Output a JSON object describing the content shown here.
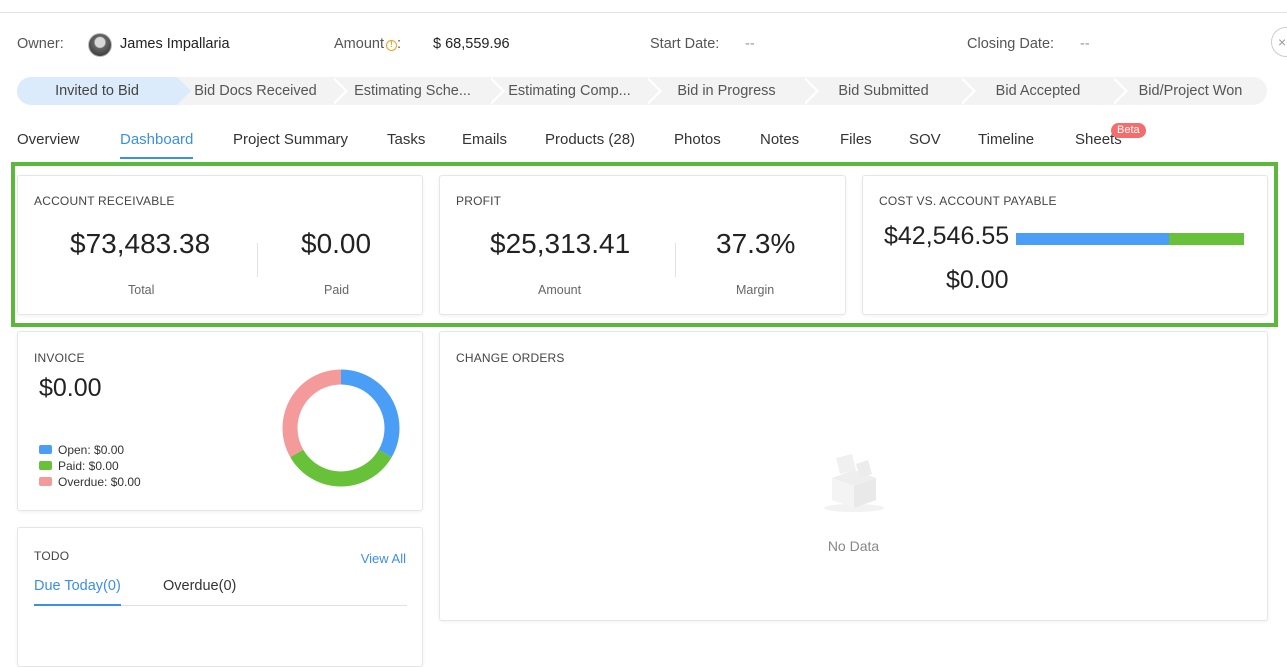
{
  "header": {
    "owner_label": "Owner:",
    "owner_name": "James Impallaria",
    "amount_label": "Amount",
    "amount_colon": ":",
    "amount_value": "$ 68,559.96",
    "start_label": "Start Date:",
    "start_value": "--",
    "closing_label": "Closing Date:",
    "closing_value": "--"
  },
  "stages": [
    {
      "label": "Invited to Bid",
      "active": true
    },
    {
      "label": "Bid Docs Received"
    },
    {
      "label": "Estimating Sche..."
    },
    {
      "label": "Estimating Comp..."
    },
    {
      "label": "Bid in Progress"
    },
    {
      "label": "Bid Submitted"
    },
    {
      "label": "Bid Accepted"
    },
    {
      "label": "Bid/Project Won"
    }
  ],
  "tabs": [
    {
      "label": "Overview"
    },
    {
      "label": "Dashboard",
      "active": true
    },
    {
      "label": "Project Summary"
    },
    {
      "label": "Tasks"
    },
    {
      "label": "Emails"
    },
    {
      "label": "Products (28)"
    },
    {
      "label": "Photos"
    },
    {
      "label": "Notes"
    },
    {
      "label": "Files"
    },
    {
      "label": "SOV"
    },
    {
      "label": "Timeline"
    },
    {
      "label": "Sheets",
      "badge": "Beta"
    }
  ],
  "account_receivable": {
    "title": "ACCOUNT RECEIVABLE",
    "total_value": "$73,483.38",
    "total_label": "Total",
    "paid_value": "$0.00",
    "paid_label": "Paid"
  },
  "profit": {
    "title": "PROFIT",
    "amount_value": "$25,313.41",
    "amount_label": "Amount",
    "margin_value": "37.3%",
    "margin_label": "Margin"
  },
  "cost_vs_ap": {
    "title": "COST VS. ACCOUNT PAYABLE",
    "cost_value": "$42,546.55",
    "payable_value": "$0.00",
    "bar_fraction_blue": 0.67,
    "colors": {
      "blue": "#4a9ef5",
      "green": "#67c23a"
    }
  },
  "invoice": {
    "title": "INVOICE",
    "total": "$0.00",
    "legend": [
      {
        "label": "Open: $0.00",
        "color": "#4a9ef5"
      },
      {
        "label": "Paid: $0.00",
        "color": "#67c23a"
      },
      {
        "label": "Overdue: $0.00",
        "color": "#f59a9a"
      }
    ]
  },
  "chart_data": {
    "type": "pie",
    "categories": [
      "Open",
      "Paid",
      "Overdue"
    ],
    "values": [
      0.0,
      0.0,
      0.0
    ],
    "display_fractions": [
      0.333,
      0.333,
      0.334
    ],
    "colors": [
      "#4a9ef5",
      "#67c23a",
      "#f59a9a"
    ]
  },
  "todo": {
    "title": "TODO",
    "view_all": "View All",
    "tab_due": "Due Today(0)",
    "tab_overdue": "Overdue(0)"
  },
  "change_orders": {
    "title": "CHANGE ORDERS",
    "empty_text": "No Data"
  }
}
